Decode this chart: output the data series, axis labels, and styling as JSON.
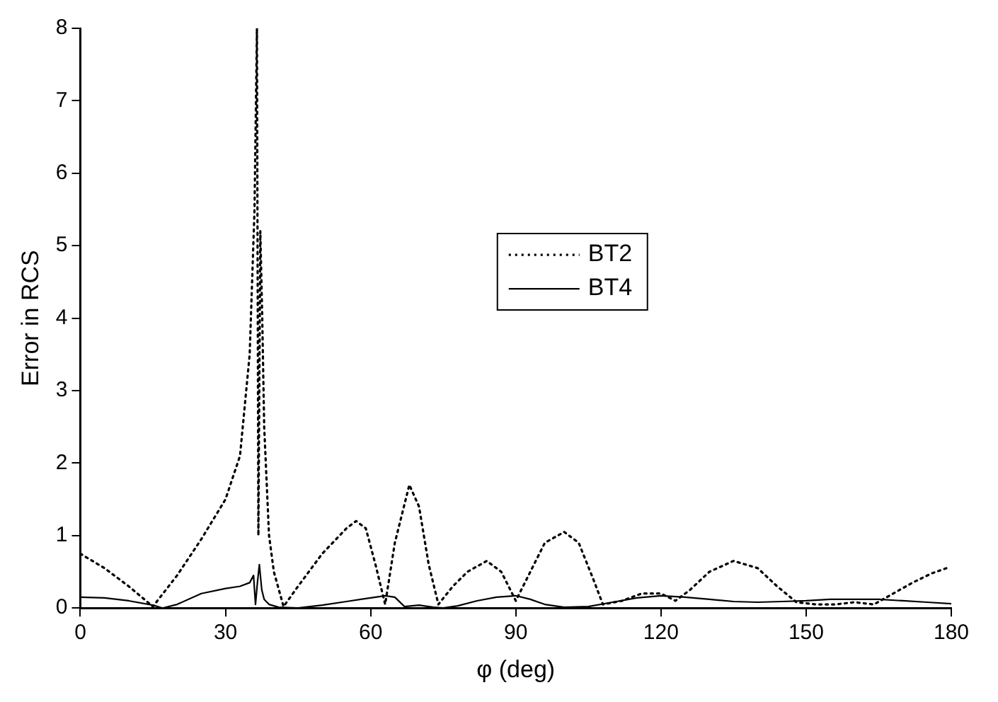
{
  "chart_data": {
    "type": "line",
    "xlabel": "φ (deg)",
    "ylabel": "Error in RCS",
    "xlim": [
      0,
      180
    ],
    "xticks": [
      0,
      30,
      60,
      90,
      120,
      150,
      180
    ],
    "ylim": [
      0,
      8
    ],
    "yticks": [
      0,
      1,
      2,
      3,
      4,
      5,
      6,
      7,
      8
    ],
    "grid": false,
    "legend": "center",
    "marker": "none",
    "series": [
      {
        "name": "BT2",
        "color": "#000000",
        "line_style": "dotted",
        "x": [
          0,
          5,
          10,
          15,
          20,
          25,
          30,
          33,
          35,
          36,
          36.5,
          36.8,
          37.2,
          37.6,
          38,
          39,
          40,
          42,
          45,
          50,
          55,
          57,
          59,
          61,
          63,
          65,
          68,
          70,
          72,
          74,
          77,
          80,
          84,
          87,
          90,
          93,
          96,
          100,
          103,
          106,
          108,
          112,
          116,
          120,
          123,
          126,
          130,
          135,
          140,
          144,
          148,
          152,
          156,
          160,
          164,
          168,
          172,
          176,
          179
        ],
        "values": [
          0.75,
          0.55,
          0.3,
          0.02,
          0.45,
          0.95,
          1.5,
          2.1,
          3.5,
          5.5,
          8,
          1,
          5.2,
          4,
          2.5,
          1,
          0.5,
          0.02,
          0.3,
          0.75,
          1.1,
          1.2,
          1.1,
          0.6,
          0.05,
          0.9,
          1.7,
          1.4,
          0.6,
          0.05,
          0.3,
          0.5,
          0.65,
          0.5,
          0.1,
          0.5,
          0.9,
          1.05,
          0.9,
          0.4,
          0.05,
          0.1,
          0.2,
          0.2,
          0.1,
          0.25,
          0.5,
          0.65,
          0.55,
          0.3,
          0.08,
          0.05,
          0.05,
          0.08,
          0.05,
          0.2,
          0.35,
          0.48,
          0.55
        ]
      },
      {
        "name": "BT4",
        "color": "#000000",
        "line_style": "solid",
        "x": [
          0,
          5,
          10,
          15,
          17,
          20,
          25,
          30,
          33,
          35,
          35.8,
          36.2,
          36.6,
          37,
          37.5,
          38,
          39,
          41,
          45,
          50,
          55,
          60,
          63,
          65,
          67,
          70,
          73,
          75,
          78,
          82,
          86,
          90,
          93,
          96,
          100,
          105,
          110,
          115,
          120,
          125,
          130,
          135,
          140,
          145,
          150,
          155,
          160,
          165,
          170,
          175,
          180
        ],
        "values": [
          0.15,
          0.14,
          0.1,
          0.04,
          0,
          0.05,
          0.2,
          0.27,
          0.3,
          0.35,
          0.45,
          0.05,
          0.35,
          0.6,
          0.25,
          0.12,
          0.05,
          0.01,
          0,
          0.04,
          0.09,
          0.14,
          0.17,
          0.15,
          0.02,
          0.04,
          0.01,
          0,
          0.03,
          0.1,
          0.15,
          0.17,
          0.12,
          0.05,
          0.01,
          0.02,
          0.08,
          0.14,
          0.17,
          0.15,
          0.12,
          0.09,
          0.08,
          0.09,
          0.1,
          0.12,
          0.12,
          0.12,
          0.1,
          0.08,
          0.06
        ]
      }
    ]
  }
}
